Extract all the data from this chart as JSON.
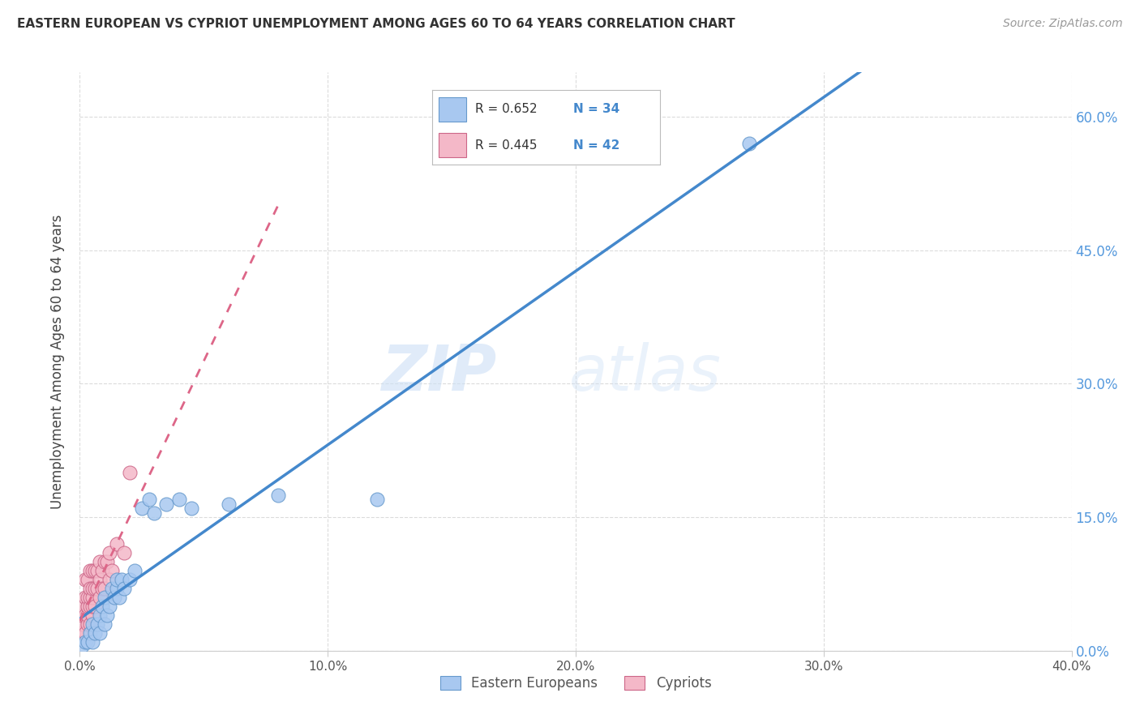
{
  "title": "EASTERN EUROPEAN VS CYPRIOT UNEMPLOYMENT AMONG AGES 60 TO 64 YEARS CORRELATION CHART",
  "source": "Source: ZipAtlas.com",
  "ylabel": "Unemployment Among Ages 60 to 64 years",
  "xlim": [
    0.0,
    0.4
  ],
  "ylim": [
    0.0,
    0.65
  ],
  "xticks": [
    0.0,
    0.1,
    0.2,
    0.3,
    0.4
  ],
  "xticklabels": [
    "0.0%",
    "10.0%",
    "20.0%",
    "30.0%",
    "40.0%"
  ],
  "yticks": [
    0.0,
    0.15,
    0.3,
    0.45,
    0.6
  ],
  "yticklabels": [
    "0.0%",
    "15.0%",
    "30.0%",
    "45.0%",
    "60.0%"
  ],
  "eastern_europeans_x": [
    0.001,
    0.002,
    0.003,
    0.004,
    0.005,
    0.005,
    0.006,
    0.007,
    0.008,
    0.008,
    0.009,
    0.01,
    0.01,
    0.011,
    0.012,
    0.013,
    0.014,
    0.015,
    0.015,
    0.016,
    0.017,
    0.018,
    0.02,
    0.022,
    0.025,
    0.028,
    0.03,
    0.035,
    0.04,
    0.045,
    0.06,
    0.08,
    0.12,
    0.27
  ],
  "eastern_europeans_y": [
    0.005,
    0.01,
    0.01,
    0.02,
    0.01,
    0.03,
    0.02,
    0.03,
    0.04,
    0.02,
    0.05,
    0.03,
    0.06,
    0.04,
    0.05,
    0.07,
    0.06,
    0.07,
    0.08,
    0.06,
    0.08,
    0.07,
    0.08,
    0.09,
    0.16,
    0.17,
    0.155,
    0.165,
    0.17,
    0.16,
    0.165,
    0.175,
    0.17,
    0.57
  ],
  "cypriots_x": [
    0.001,
    0.001,
    0.001,
    0.001,
    0.002,
    0.002,
    0.002,
    0.002,
    0.003,
    0.003,
    0.003,
    0.003,
    0.003,
    0.004,
    0.004,
    0.004,
    0.004,
    0.004,
    0.005,
    0.005,
    0.005,
    0.005,
    0.005,
    0.006,
    0.006,
    0.006,
    0.007,
    0.007,
    0.008,
    0.008,
    0.008,
    0.009,
    0.009,
    0.01,
    0.01,
    0.011,
    0.012,
    0.012,
    0.013,
    0.015,
    0.018,
    0.02
  ],
  "cypriots_y": [
    0.02,
    0.03,
    0.04,
    0.05,
    0.02,
    0.04,
    0.06,
    0.08,
    0.03,
    0.04,
    0.05,
    0.06,
    0.08,
    0.03,
    0.05,
    0.06,
    0.07,
    0.09,
    0.04,
    0.05,
    0.06,
    0.07,
    0.09,
    0.05,
    0.07,
    0.09,
    0.07,
    0.09,
    0.06,
    0.08,
    0.1,
    0.07,
    0.09,
    0.07,
    0.1,
    0.1,
    0.08,
    0.11,
    0.09,
    0.12,
    0.11,
    0.2
  ],
  "eastern_color": "#a8c8f0",
  "eastern_edge": "#6699cc",
  "cypriot_color": "#f4b8c8",
  "cypriot_edge": "#cc6688",
  "trendline_eastern_color": "#4488cc",
  "trendline_cypriot_color": "#dd6688",
  "r_eastern": 0.652,
  "n_eastern": 34,
  "r_cypriot": 0.445,
  "n_cypriot": 42,
  "legend_eastern_label": "Eastern Europeans",
  "legend_cypriot_label": "Cypriots",
  "watermark_zip": "ZIP",
  "watermark_atlas": "atlas",
  "background_color": "#ffffff",
  "grid_color": "#cccccc"
}
